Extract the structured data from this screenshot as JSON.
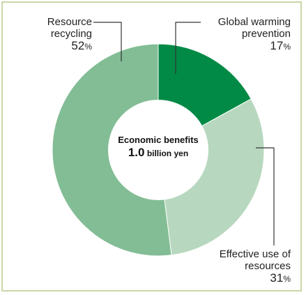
{
  "chart_data": {
    "type": "pie",
    "variant": "donut",
    "center_label": {
      "line1": "Economic benefits",
      "value": "1.0",
      "unit": "billion yen"
    },
    "slices": [
      {
        "label_line1": "Global warming",
        "label_line2": "prevention",
        "value": 17,
        "pct": "17",
        "color": "#008a45"
      },
      {
        "label_line1": "Effective use of",
        "label_line2": "resources",
        "value": 31,
        "pct": "31",
        "color": "#b7d8bf"
      },
      {
        "label_line1": "Resource",
        "label_line2": "recycling",
        "value": 52,
        "pct": "52",
        "color": "#83bd95"
      }
    ],
    "percent_sign": "%"
  },
  "colors": {
    "frame": "#c9d7a6",
    "leader": "#333333"
  }
}
